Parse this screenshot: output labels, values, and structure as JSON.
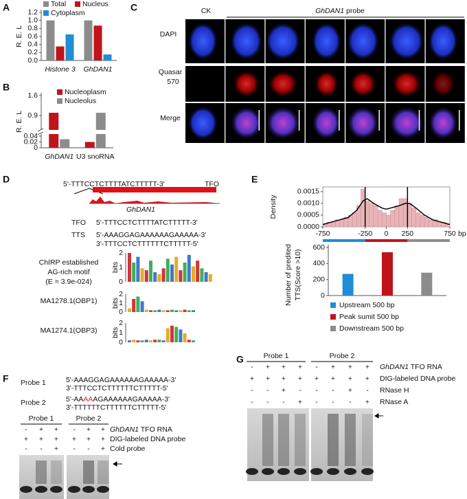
{
  "figure_labels": [
    "A",
    "B",
    "C",
    "D",
    "E",
    "F",
    "G"
  ],
  "chart_data": [
    {
      "type": "bar",
      "ylabel": "R. E. L",
      "categories": [
        "Histone 3",
        "GhDAN1"
      ],
      "series": [
        {
          "name": "Total",
          "color": "#8c8c8c",
          "values": [
            1.0,
            1.0
          ]
        },
        {
          "name": "Nucleus",
          "color": "#c0141b",
          "values": [
            0.35,
            0.87
          ]
        },
        {
          "name": "Cytoplasm",
          "color": "#1f8ed6",
          "values": [
            0.65,
            0.15
          ]
        }
      ],
      "ylim": [
        0,
        1.2
      ],
      "yticks": [
        {
          "value": 0,
          "label": "0.0"
        },
        {
          "value": 0.2,
          "label": "0.2"
        },
        {
          "value": 0.4,
          "label": "0.4"
        },
        {
          "value": 0.6,
          "label": "0.6"
        },
        {
          "value": 0.8,
          "label": "0.8"
        },
        {
          "value": 1.0,
          "label": "1.0"
        },
        {
          "value": 1.2,
          "label": "1.2"
        }
      ]
    },
    {
      "type": "bar",
      "ylabel": "R. E. L",
      "categories": [
        "GhDAN1",
        "U3 snoRNA"
      ],
      "series": [
        {
          "name": "Nucleoplasm",
          "color": "#c0141b",
          "values": [
            1.0,
            0.02
          ]
        },
        {
          "name": "Nucleolus",
          "color": "#8c8c8c",
          "values": [
            0.08,
            1.0
          ]
        }
      ],
      "ylim": [
        0,
        1.6
      ],
      "axis_break": [
        0.04,
        0.5
      ],
      "yticks": [
        0,
        0.02,
        0.04,
        0.9,
        1.6
      ]
    },
    {
      "type": "histogram",
      "ylabel": "Density",
      "xlabel": "bp",
      "bins": [
        -750,
        -700,
        -650,
        -600,
        -550,
        -500,
        -450,
        -400,
        -350,
        -300,
        -250,
        -200,
        -150,
        -100,
        -50,
        0,
        50,
        100,
        150,
        200,
        250,
        300,
        350,
        400,
        450,
        500,
        550,
        600,
        650,
        700,
        750
      ],
      "values": [
        0.0001,
        0.0002,
        0.0002,
        0.0003,
        0.0003,
        0.0004,
        0.0005,
        0.0006,
        0.0009,
        0.0016,
        0.0011,
        0.001,
        0.0009,
        0.0007,
        0.0006,
        0.0005,
        0.0007,
        0.0009,
        0.0012,
        0.0012,
        0.001,
        0.0008,
        0.0006,
        0.0005,
        0.0004,
        0.0003,
        0.0003,
        0.0002,
        0.0002,
        0.0001
      ],
      "color": "#e8b4b8",
      "line": {
        "x": [
          -750,
          -650,
          -550,
          -450,
          -350,
          -275,
          -225,
          -150,
          -50,
          0,
          50,
          150,
          225,
          275,
          350,
          450,
          550,
          650,
          750
        ],
        "values": [
          0.0001,
          0.0002,
          0.0003,
          0.0004,
          0.0007,
          0.0011,
          0.0012,
          0.001,
          0.0008,
          0.00075,
          0.0008,
          0.0009,
          0.001,
          0.001,
          0.0008,
          0.0005,
          0.0003,
          0.0002,
          0.0001
        ]
      },
      "vlines": [
        -250,
        250
      ],
      "region_colors": [
        "#1f8ed6",
        "#c0141b",
        "#8c8c8c"
      ],
      "xlim": [
        -750,
        750
      ],
      "xticks": [
        -750,
        -250,
        0,
        250,
        750
      ],
      "ylim": [
        0,
        0.0017
      ],
      "yticks": [
        {
          "value": 0,
          "label": "0.0000"
        },
        {
          "value": 0.0005,
          "label": "0.0005"
        },
        {
          "value": 0.001,
          "label": "0.0010"
        },
        {
          "value": 0.0015,
          "label": "0.0015"
        }
      ]
    },
    {
      "type": "bar",
      "ylabel": [
        "Number of predited",
        "TTS(Score >10)"
      ],
      "categories": [
        "Upstream 500 bp",
        "Peak sumit 500 bp",
        "Downstream 500 bp"
      ],
      "values": [
        270,
        540,
        285
      ],
      "colors": [
        "#1f8ed6",
        "#c0141b",
        "#8c8c8c"
      ],
      "ylim": [
        0,
        600
      ],
      "yticks": [
        0,
        200,
        400,
        600
      ]
    }
  ],
  "panel_c": {
    "ck": "CK",
    "probe_label": [
      "GhDAN1",
      " probe"
    ],
    "rows": [
      [
        "DAPI"
      ],
      [
        "Quasar",
        "570"
      ],
      [
        "Merge"
      ]
    ]
  },
  "panel_d": {
    "tfo_sequence": "5'-TTTCCTCTTTTATCTTTTT-3'",
    "tfo_tag": "TFO",
    "gene": "GhDAN1",
    "pairs": [
      {
        "label": "TFO",
        "lines": [
          "5'-TTTCCTCTTTTATCTTTTT-3'"
        ]
      },
      {
        "label": "TTS",
        "lines": [
          "5'-AAAGGAGAAAAAAGAAAAA-3'",
          "3'-TTTCCTCTTTTTTCTTTTT-5'"
        ]
      }
    ],
    "motifs": [
      {
        "name": [
          "ChIRP established",
          "AG-rich motif",
          "(E = 3.9e-024)"
        ],
        "axis": "bits",
        "ticks": [
          2,
          1,
          0
        ]
      },
      {
        "name": [
          "MA1278.1(OBP1)"
        ],
        "axis": "bits",
        "ticks": [
          2,
          1,
          0
        ]
      },
      {
        "name": [
          "MA1274.1(OBP3)"
        ],
        "axis": "bits",
        "ticks": [
          2,
          1,
          0
        ]
      }
    ]
  },
  "panel_f": {
    "probes": [
      {
        "name": "Probe 1",
        "lines": [
          [
            "5'-AAAGGAGAAAAAAGAAAAA-3'"
          ],
          [
            "3'-TTTCCTCTTTTTTCTTTTT-5'"
          ]
        ]
      },
      {
        "name": "Probe 2",
        "lines": [
          [
            "5'-AA",
            "AA",
            "AGAAAAAAGAAAAA-3'"
          ],
          [
            "3'-TTTTTTCTTTTTTCTTTTT-5'"
          ]
        ]
      }
    ],
    "lanes": {
      "groups": [
        "Probe 1",
        "Probe 2"
      ],
      "rows": [
        {
          "label": [
            "GhDAN1",
            " TFO RNA"
          ],
          "signs": [
            [
              "-",
              "+",
              "+"
            ],
            [
              "-",
              "+",
              "+"
            ]
          ]
        },
        {
          "label": [
            "DIG-labeled DNA probe"
          ],
          "signs": [
            [
              "+",
              "+",
              "+"
            ],
            [
              "+",
              "+",
              "+"
            ]
          ]
        },
        {
          "label": [
            "Cold probe"
          ],
          "signs": [
            [
              "-",
              "-",
              "+"
            ],
            [
              "-",
              "-",
              "+"
            ]
          ]
        }
      ]
    }
  },
  "panel_g": {
    "lanes": {
      "groups": [
        "Probe 1",
        "Probe 2"
      ],
      "rows": [
        {
          "label": [
            "GhDAN1",
            " TFO RNA"
          ],
          "signs": [
            [
              "-",
              "+",
              "+",
              "+"
            ],
            [
              "-",
              "+",
              "+",
              "+"
            ]
          ]
        },
        {
          "label": [
            "DIG-labeled DNA probe"
          ],
          "signs": [
            [
              "+",
              "+",
              "+",
              "+"
            ],
            [
              "+",
              "+",
              "+",
              "+"
            ]
          ]
        },
        {
          "label": [
            "RNase H"
          ],
          "signs": [
            [
              "-",
              "-",
              "+",
              "-"
            ],
            [
              "-",
              "-",
              "+",
              "-"
            ]
          ]
        },
        {
          "label": [
            "RNase A"
          ],
          "signs": [
            [
              "-",
              "-",
              "-",
              "+"
            ],
            [
              "-",
              "-",
              "-",
              "+"
            ]
          ]
        }
      ]
    }
  }
}
